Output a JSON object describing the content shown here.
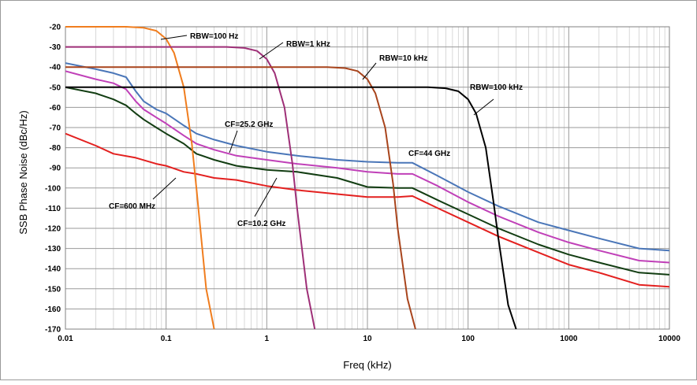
{
  "chart_data": {
    "type": "line",
    "title": "",
    "xlabel": "Freq (kHz)",
    "ylabel": "SSB Phase Noise (dBc/Hz)",
    "xscale": "log",
    "xlim": [
      0.01,
      10000
    ],
    "ylim": [
      -170,
      -20
    ],
    "grid": true,
    "x_ticks": [
      0.01,
      0.1,
      1,
      10,
      100,
      1000,
      10000
    ],
    "x_tick_labels": [
      "0.01",
      "0.1",
      "1",
      "10",
      "100",
      "1000",
      "10000"
    ],
    "y_ticks": [
      -20,
      -30,
      -40,
      -50,
      -60,
      -70,
      -80,
      -90,
      -100,
      -110,
      -120,
      -130,
      -140,
      -150,
      -160,
      -170
    ],
    "y_tick_labels": [
      "-20",
      "-30",
      "-40",
      "-50",
      "-60",
      "-70",
      "-80",
      "-90",
      "-100",
      "-110",
      "-120",
      "-130",
      "-140",
      "-150",
      "-160",
      "-170"
    ],
    "series": [
      {
        "name": "CF=44 GHz",
        "color": "#4a76b8",
        "x": [
          0.01,
          0.02,
          0.03,
          0.04,
          0.05,
          0.06,
          0.08,
          0.1,
          0.15,
          0.2,
          0.3,
          0.5,
          1,
          2,
          5,
          10,
          20,
          28,
          50,
          100,
          200,
          500,
          1000,
          2000,
          5000,
          10000
        ],
        "y": [
          -38,
          -41,
          -43,
          -45,
          -52,
          -57,
          -61,
          -63,
          -69,
          -73,
          -76,
          -79,
          -82,
          -84,
          -86,
          -87,
          -87.5,
          -87.5,
          -94,
          -102,
          -109,
          -117,
          -121,
          -125,
          -130,
          -131
        ]
      },
      {
        "name": "CF=25.2 GHz",
        "color": "#c040b8",
        "x": [
          0.01,
          0.02,
          0.03,
          0.04,
          0.05,
          0.06,
          0.08,
          0.1,
          0.15,
          0.2,
          0.3,
          0.5,
          1,
          2,
          5,
          10,
          20,
          28,
          50,
          100,
          200,
          500,
          1000,
          2000,
          5000,
          10000
        ],
        "y": [
          -42,
          -46,
          -48,
          -51,
          -57,
          -61,
          -65,
          -68,
          -74,
          -78,
          -81,
          -84,
          -86,
          -88,
          -90,
          -92,
          -93,
          -93,
          -99,
          -107,
          -114,
          -122,
          -127,
          -131,
          -136,
          -137
        ]
      },
      {
        "name": "CF=10.2 GHz",
        "color": "#123d12",
        "x": [
          0.01,
          0.02,
          0.03,
          0.04,
          0.05,
          0.06,
          0.08,
          0.1,
          0.15,
          0.2,
          0.3,
          0.5,
          1,
          2,
          5,
          10,
          20,
          28,
          50,
          100,
          200,
          500,
          1000,
          2000,
          5000,
          10000
        ],
        "y": [
          -50,
          -53,
          -56,
          -59,
          -63,
          -66,
          -70,
          -73,
          -78,
          -83,
          -86,
          -89,
          -91,
          -92,
          -95,
          -99.5,
          -100,
          -100,
          -106,
          -113,
          -120,
          -128,
          -133,
          -137,
          -142,
          -143
        ]
      },
      {
        "name": "CF=600 MHz",
        "color": "#e3201f",
        "x": [
          0.01,
          0.02,
          0.03,
          0.05,
          0.08,
          0.1,
          0.15,
          0.2,
          0.3,
          0.5,
          1,
          2,
          5,
          10,
          20,
          28,
          50,
          100,
          200,
          500,
          1000,
          2000,
          5000,
          10000
        ],
        "y": [
          -73,
          -79,
          -83,
          -85,
          -88,
          -89,
          -92,
          -93,
          -95,
          -96,
          -99,
          -101,
          -103,
          -104.5,
          -104.5,
          -104,
          -110,
          -117,
          -124,
          -132,
          -138,
          -142,
          -148,
          -149
        ]
      },
      {
        "name": "RBW=100 Hz",
        "color": "#f07d1e",
        "x": [
          0.01,
          0.04,
          0.06,
          0.08,
          0.1,
          0.12,
          0.15,
          0.18,
          0.2,
          0.25,
          0.3
        ],
        "y": [
          -20,
          -20,
          -20.5,
          -22,
          -26,
          -33,
          -50,
          -78,
          -100,
          -150,
          -170
        ]
      },
      {
        "name": "RBW=1 kHz",
        "color": "#9e2f77",
        "x": [
          0.01,
          0.4,
          0.6,
          0.8,
          1,
          1.2,
          1.5,
          1.8,
          2,
          2.5,
          3
        ],
        "y": [
          -30,
          -30,
          -30.5,
          -32,
          -36,
          -43,
          -60,
          -88,
          -110,
          -150,
          -170
        ]
      },
      {
        "name": "RBW=10 kHz",
        "color": "#a8441c",
        "x": [
          0.01,
          4,
          6,
          8,
          10,
          12,
          15,
          18,
          20,
          25,
          30
        ],
        "y": [
          -40,
          -40,
          -40.5,
          -42,
          -46,
          -53,
          -70,
          -98,
          -120,
          -155,
          -170
        ]
      },
      {
        "name": "RBW=100 kHz",
        "color": "#000000",
        "x": [
          0.01,
          40,
          60,
          80,
          100,
          120,
          150,
          180,
          200,
          250,
          300
        ],
        "y": [
          -50,
          -50,
          -50.5,
          -52,
          -56,
          -63,
          -80,
          -108,
          -125,
          -158,
          -170
        ]
      }
    ],
    "annotations": [
      {
        "text": "RBW=100 Hz"
      },
      {
        "text": "RBW=1 kHz"
      },
      {
        "text": "RBW=10 kHz"
      },
      {
        "text": "RBW=100 kHz"
      },
      {
        "text": "CF=25.2 GHz"
      },
      {
        "text": "CF=44 GHz"
      },
      {
        "text": "CF=600 MHz"
      },
      {
        "text": "CF=10.2 GHz"
      }
    ]
  }
}
